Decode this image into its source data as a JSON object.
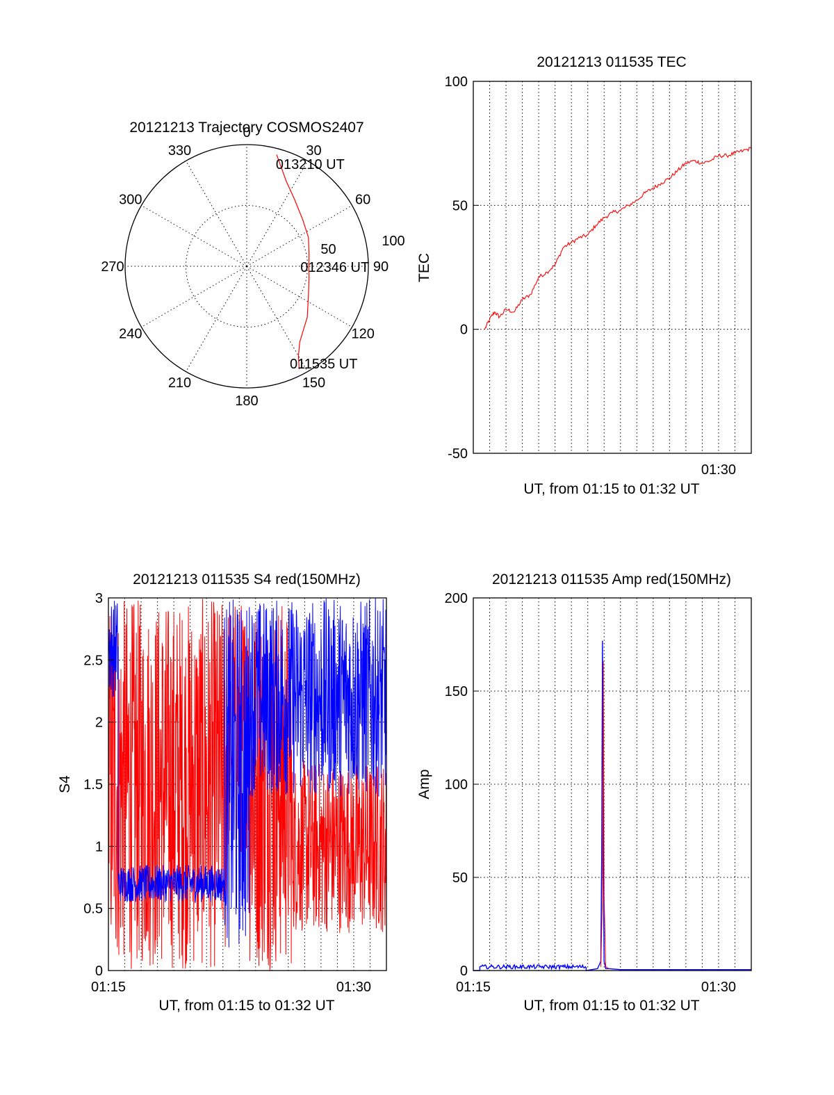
{
  "colors": {
    "red": "#ff0000",
    "blue": "#0000ff",
    "axis": "#000000"
  },
  "chart_data": [
    {
      "type": "polar",
      "title": "20121213 Trajectory COSMOS2407",
      "azimuth_labels": [
        "0",
        "30",
        "60",
        "90",
        "120",
        "150",
        "180",
        "210",
        "240",
        "270",
        "300",
        "330"
      ],
      "radial_labels": [
        "50",
        "100"
      ],
      "rlim": [
        0,
        100
      ],
      "grid": true,
      "series": [
        {
          "color": "#ff0000",
          "points": [
            {
              "az": 15,
              "r": 95
            },
            {
              "az": 25,
              "r": 77
            },
            {
              "az": 35,
              "r": 68
            },
            {
              "az": 50,
              "r": 60
            },
            {
              "az": 65,
              "r": 56
            },
            {
              "az": 80,
              "r": 52
            },
            {
              "az": 90,
              "r": 51
            },
            {
              "az": 100,
              "r": 52
            },
            {
              "az": 115,
              "r": 56
            },
            {
              "az": 130,
              "r": 65
            },
            {
              "az": 145,
              "r": 76
            },
            {
              "az": 150,
              "r": 85
            },
            {
              "az": 153,
              "r": 95
            }
          ]
        }
      ],
      "annotations": [
        {
          "text": "013210 UT",
          "az": 20,
          "r": 90
        },
        {
          "text": "012346 UT",
          "az": 90,
          "r": 51
        },
        {
          "text": "011535 UT",
          "az": 152,
          "r": 90
        }
      ]
    },
    {
      "type": "line",
      "title": "20121213 011535 TEC",
      "xlabel": "UT, from 01:15 to 01:32 UT",
      "ylabel": "TEC",
      "xlim": [
        0,
        17
      ],
      "ylim": [
        -50,
        100
      ],
      "yticks": [
        -50,
        0,
        50,
        100
      ],
      "xticks": [
        {
          "value": 15,
          "label": "01:30"
        }
      ],
      "grid": true,
      "series": [
        {
          "color": "#ff0000",
          "x": [
            0.7,
            1.0,
            1.3,
            1.6,
            2.0,
            2.5,
            3.0,
            3.5,
            4.0,
            4.5,
            5.0,
            5.5,
            6.0,
            6.5,
            7.0,
            7.5,
            8.0,
            8.5,
            9.0,
            9.5,
            10.0,
            10.5,
            11.0,
            11.5,
            12.0,
            12.5,
            13.0,
            13.5,
            14.0,
            14.5,
            15.0,
            15.5,
            16.0,
            16.5,
            17.0
          ],
          "y": [
            0,
            4,
            7,
            5,
            8,
            7,
            12,
            14,
            21,
            23,
            26,
            33,
            35,
            37,
            38,
            42,
            45,
            47,
            48,
            50,
            52,
            55,
            57,
            59,
            61,
            64,
            67,
            68,
            67,
            68,
            70,
            70,
            71,
            72,
            73
          ]
        }
      ]
    },
    {
      "type": "line",
      "title": "20121213 011535 S4 red(150MHz)",
      "xlabel": "UT, from 01:15 to 01:32 UT",
      "ylabel": "S4",
      "xlim": [
        0,
        17
      ],
      "ylim": [
        0,
        3
      ],
      "yticks": [
        0,
        0.5,
        1,
        1.5,
        2,
        2.5,
        3
      ],
      "ytick_labels": [
        "0",
        "0.5",
        "1",
        "1.5",
        "2",
        "2.5",
        "3"
      ],
      "xticks": [
        {
          "value": 0,
          "label": "01:15"
        },
        {
          "value": 15,
          "label": "01:30"
        }
      ],
      "grid": true,
      "series": [
        {
          "color": "#ff0000",
          "segments": [
            {
              "x0": 0.0,
              "x1": 7.2,
              "ymin": 0.0,
              "ymax": 3.0
            },
            {
              "x0": 7.2,
              "x1": 8.6,
              "ymin": 0.9,
              "ymax": 3.0
            },
            {
              "x0": 8.6,
              "x1": 11.2,
              "ymin": 0.0,
              "ymax": 3.0
            },
            {
              "x0": 11.2,
              "x1": 17.0,
              "ymin": 0.3,
              "ymax": 1.7
            }
          ]
        },
        {
          "color": "#0000ff",
          "segments": [
            {
              "x0": 0.0,
              "x1": 0.6,
              "ymin": 2.2,
              "ymax": 3.0
            },
            {
              "x0": 0.6,
              "x1": 7.1,
              "ymin": 0.55,
              "ymax": 0.85
            },
            {
              "x0": 7.1,
              "x1": 8.6,
              "ymin": 0.15,
              "ymax": 3.0
            },
            {
              "x0": 8.6,
              "x1": 17.0,
              "ymin": 1.4,
              "ymax": 3.0
            }
          ]
        }
      ]
    },
    {
      "type": "line",
      "title": "20121213 011535 Amp red(150MHz)",
      "xlabel": "UT, from 01:15 to 01:32 UT",
      "ylabel": "Amp",
      "xlim": [
        0,
        17
      ],
      "ylim": [
        0,
        200
      ],
      "yticks": [
        0,
        50,
        100,
        150,
        200
      ],
      "xticks": [
        {
          "value": 0,
          "label": "01:15"
        },
        {
          "value": 15,
          "label": "01:30"
        }
      ],
      "grid": true,
      "series": [
        {
          "color": "#0000ff",
          "x": [
            0.0,
            0.4,
            0.4,
            6.9,
            6.9,
            7.6,
            7.8,
            7.85,
            7.9,
            7.95,
            8.0,
            8.1,
            8.3,
            9.0,
            17.0
          ],
          "y": [
            0,
            0,
            2,
            2,
            0,
            1,
            5,
            60,
            177,
            60,
            5,
            1,
            1,
            0.5,
            0.5
          ]
        },
        {
          "color": "#ff0000",
          "x": [
            7.8,
            7.9,
            7.95,
            8.0,
            8.1,
            8.3
          ],
          "y": [
            2,
            40,
            166,
            40,
            2,
            1
          ]
        }
      ]
    }
  ]
}
